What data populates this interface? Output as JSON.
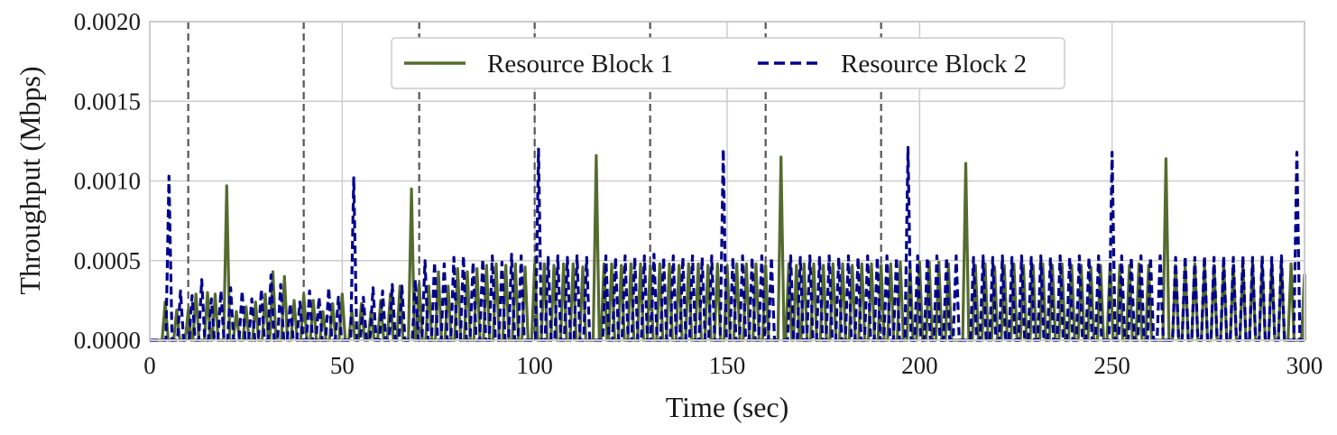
{
  "chart_data": {
    "type": "line",
    "title": "",
    "xlabel": "Time (sec)",
    "ylabel": "Throughput (Mbps)",
    "xlim": [
      0,
      300
    ],
    "ylim": [
      0,
      0.002
    ],
    "x_ticks": [
      0,
      50,
      100,
      150,
      200,
      250,
      300
    ],
    "x_tick_labels": [
      "0",
      "50",
      "100",
      "150",
      "200",
      "250",
      "300"
    ],
    "y_ticks": [
      0,
      0.0005,
      0.001,
      0.0015,
      0.002
    ],
    "y_tick_labels": [
      "0.0000",
      "0.0005",
      "0.0010",
      "0.0015",
      "0.0020"
    ],
    "grid": true,
    "legend_position": "top-center",
    "event_markers_x": [
      10,
      40,
      70,
      100,
      130,
      160,
      190
    ],
    "event_marker_color": "#555555",
    "series": [
      {
        "name": "Resource Block 1",
        "color": "#556b2f",
        "dash": "solid",
        "peaks": [
          [
            4,
            0.00024
          ],
          [
            7,
            0.00019
          ],
          [
            10,
            0.00019
          ],
          [
            12,
            0.00029
          ],
          [
            15,
            0.0003
          ],
          [
            17,
            0.00029
          ],
          [
            20,
            0.00097
          ],
          [
            22.5,
            0.00018
          ],
          [
            25,
            0.00021
          ],
          [
            27.5,
            0.00024
          ],
          [
            30,
            0.00029
          ],
          [
            32,
            0.00043
          ],
          [
            35,
            0.0004
          ],
          [
            37.5,
            0.00025
          ],
          [
            40,
            0.00029
          ],
          [
            42.5,
            0.00025
          ],
          [
            45,
            0.00018
          ],
          [
            47.5,
            0.00023
          ],
          [
            50,
            0.00029
          ],
          [
            52.5,
            0.00019
          ],
          [
            55,
            0.00023
          ],
          [
            57.5,
            0.00018
          ],
          [
            60,
            0.00025
          ],
          [
            62.5,
            0.00029
          ],
          [
            65,
            0.00034
          ],
          [
            68,
            0.00095
          ],
          [
            70,
            0.00036
          ],
          [
            72.5,
            0.00034
          ],
          [
            75,
            0.00043
          ],
          [
            77.5,
            0.00034
          ],
          [
            80,
            0.00045
          ],
          [
            82.5,
            0.00043
          ],
          [
            85,
            0.00045
          ],
          [
            87.5,
            0.00047
          ],
          [
            90,
            0.00048
          ],
          [
            92.5,
            0.00047
          ],
          [
            95,
            0.00048
          ],
          [
            97.5,
            0.00046
          ],
          [
            100,
            0.00048
          ],
          [
            102.5,
            0.00048
          ],
          [
            105,
            0.00047
          ],
          [
            107.5,
            0.00048
          ],
          [
            110,
            0.00048
          ],
          [
            112.5,
            0.00046
          ],
          [
            116,
            0.00116
          ],
          [
            118,
            0.00048
          ],
          [
            120,
            0.00048
          ],
          [
            122.5,
            0.00047
          ],
          [
            125,
            0.00048
          ],
          [
            127.5,
            0.00048
          ],
          [
            130,
            0.00047
          ],
          [
            132.5,
            0.00048
          ],
          [
            135,
            0.00048
          ],
          [
            137.5,
            0.00047
          ],
          [
            140,
            0.00048
          ],
          [
            142.5,
            0.00048
          ],
          [
            145,
            0.00047
          ],
          [
            147.5,
            0.00048
          ],
          [
            150,
            0.00047
          ],
          [
            152.5,
            0.00048
          ],
          [
            155,
            0.00048
          ],
          [
            157.5,
            0.00048
          ],
          [
            160,
            0.00047
          ],
          [
            164,
            0.00115
          ],
          [
            166,
            0.00048
          ],
          [
            168,
            0.00047
          ],
          [
            170,
            0.00048
          ],
          [
            172.5,
            0.00048
          ],
          [
            175,
            0.00047
          ],
          [
            177.5,
            0.00048
          ],
          [
            180,
            0.00048
          ],
          [
            182.5,
            0.00047
          ],
          [
            185,
            0.00048
          ],
          [
            187.5,
            0.00048
          ],
          [
            190,
            0.00047
          ],
          [
            192.5,
            0.00048
          ],
          [
            195,
            0.00049
          ],
          [
            197.5,
            0.00048
          ],
          [
            200,
            0.00049
          ],
          [
            202.5,
            0.00049
          ],
          [
            205,
            0.00049
          ],
          [
            207.5,
            0.00048
          ],
          [
            212,
            0.00111
          ],
          [
            214.5,
            0.00047
          ],
          [
            217,
            0.00048
          ],
          [
            219.5,
            0.00046
          ],
          [
            222,
            0.00047
          ],
          [
            224.5,
            0.00048
          ],
          [
            227,
            0.00047
          ],
          [
            229.5,
            0.00047
          ],
          [
            232,
            0.00048
          ],
          [
            234.5,
            0.00047
          ],
          [
            237,
            0.00048
          ],
          [
            239.5,
            0.00047
          ],
          [
            242,
            0.00047
          ],
          [
            244.5,
            0.00046
          ],
          [
            247,
            0.00047
          ],
          [
            249.5,
            0.00048
          ],
          [
            252,
            0.00047
          ],
          [
            254.5,
            0.00047
          ],
          [
            257,
            0.00048
          ],
          [
            259.5,
            0.00047
          ],
          [
            264,
            0.00114
          ],
          [
            266.5,
            0.00047
          ],
          [
            269,
            0.00047
          ],
          [
            271.5,
            0.00048
          ],
          [
            274,
            0.00047
          ],
          [
            276.5,
            0.00047
          ],
          [
            279,
            0.00048
          ],
          [
            281.5,
            0.00047
          ],
          [
            284,
            0.00047
          ],
          [
            286.5,
            0.00048
          ],
          [
            289,
            0.00046
          ],
          [
            291.5,
            0.00048
          ],
          [
            294,
            0.00047
          ],
          [
            296.5,
            0.00048
          ],
          [
            300,
            0.00041
          ]
        ]
      },
      {
        "name": "Resource Block 2",
        "color": "#00008b",
        "dash": "dashed",
        "peaks": [
          [
            5,
            0.00103
          ],
          [
            8,
            0.00031
          ],
          [
            11,
            0.00028
          ],
          [
            13.5,
            0.00038
          ],
          [
            16,
            0.00026
          ],
          [
            18.5,
            0.00031
          ],
          [
            21,
            0.00033
          ],
          [
            24,
            0.00031
          ],
          [
            26.5,
            0.00026
          ],
          [
            29,
            0.00032
          ],
          [
            31.5,
            0.00041
          ],
          [
            34,
            0.00035
          ],
          [
            36.5,
            0.00023
          ],
          [
            39,
            0.00024
          ],
          [
            41.5,
            0.00031
          ],
          [
            44,
            0.00027
          ],
          [
            46.5,
            0.00033
          ],
          [
            49,
            0.00027
          ],
          [
            53,
            0.00102
          ],
          [
            55.5,
            0.00027
          ],
          [
            58,
            0.00033
          ],
          [
            60.5,
            0.00031
          ],
          [
            63,
            0.00035
          ],
          [
            65.5,
            0.00034
          ],
          [
            69,
            0.00038
          ],
          [
            71.5,
            0.0005
          ],
          [
            74,
            0.00049
          ],
          [
            76.5,
            0.00048
          ],
          [
            79,
            0.00052
          ],
          [
            81.5,
            0.00053
          ],
          [
            84,
            0.00049
          ],
          [
            86.5,
            0.00051
          ],
          [
            89,
            0.00053
          ],
          [
            91.5,
            0.00049
          ],
          [
            94,
            0.00054
          ],
          [
            96.5,
            0.00053
          ],
          [
            101,
            0.0012
          ],
          [
            103.5,
            0.00052
          ],
          [
            106,
            0.00053
          ],
          [
            108.5,
            0.00052
          ],
          [
            111,
            0.00053
          ],
          [
            113.5,
            0.00052
          ],
          [
            118.5,
            0.00053
          ],
          [
            121,
            0.00052
          ],
          [
            123.5,
            0.00053
          ],
          [
            126,
            0.00052
          ],
          [
            128.5,
            0.00053
          ],
          [
            131,
            0.00054
          ],
          [
            133.5,
            0.00052
          ],
          [
            136,
            0.00053
          ],
          [
            138.5,
            0.00052
          ],
          [
            141,
            0.00053
          ],
          [
            143.5,
            0.00052
          ],
          [
            146,
            0.00053
          ],
          [
            149,
            0.0012
          ],
          [
            151.5,
            0.00052
          ],
          [
            154,
            0.00053
          ],
          [
            156.5,
            0.00052
          ],
          [
            159,
            0.00053
          ],
          [
            161.5,
            0.00052
          ],
          [
            166.5,
            0.00053
          ],
          [
            169,
            0.00052
          ],
          [
            171.5,
            0.00053
          ],
          [
            174,
            0.00052
          ],
          [
            176.5,
            0.00053
          ],
          [
            179,
            0.00052
          ],
          [
            181.5,
            0.00053
          ],
          [
            184,
            0.00052
          ],
          [
            186.5,
            0.00053
          ],
          [
            189,
            0.00052
          ],
          [
            191.5,
            0.00053
          ],
          [
            194,
            0.00052
          ],
          [
            197,
            0.00121
          ],
          [
            199.5,
            0.00053
          ],
          [
            202,
            0.00052
          ],
          [
            204.5,
            0.00053
          ],
          [
            207,
            0.00052
          ],
          [
            209.5,
            0.00053
          ],
          [
            214,
            0.00052
          ],
          [
            216.5,
            0.00053
          ],
          [
            219,
            0.00052
          ],
          [
            221.5,
            0.00053
          ],
          [
            224,
            0.00052
          ],
          [
            226.5,
            0.00053
          ],
          [
            229,
            0.00052
          ],
          [
            231.5,
            0.00053
          ],
          [
            234,
            0.00052
          ],
          [
            236.5,
            0.00053
          ],
          [
            239,
            0.00052
          ],
          [
            241.5,
            0.00053
          ],
          [
            244,
            0.00052
          ],
          [
            246.5,
            0.00053
          ],
          [
            250,
            0.00118
          ],
          [
            252.5,
            0.00053
          ],
          [
            255,
            0.00052
          ],
          [
            257.5,
            0.00053
          ],
          [
            260,
            0.00052
          ],
          [
            262.5,
            0.00053
          ],
          [
            266.5,
            0.00052
          ],
          [
            269,
            0.00053
          ],
          [
            271.5,
            0.00052
          ],
          [
            274,
            0.00053
          ],
          [
            276.5,
            0.00052
          ],
          [
            279,
            0.00053
          ],
          [
            281.5,
            0.00052
          ],
          [
            284,
            0.00053
          ],
          [
            286.5,
            0.00052
          ],
          [
            289,
            0.00053
          ],
          [
            291.5,
            0.00052
          ],
          [
            294,
            0.00053
          ],
          [
            298,
            0.00118
          ]
        ]
      }
    ]
  }
}
